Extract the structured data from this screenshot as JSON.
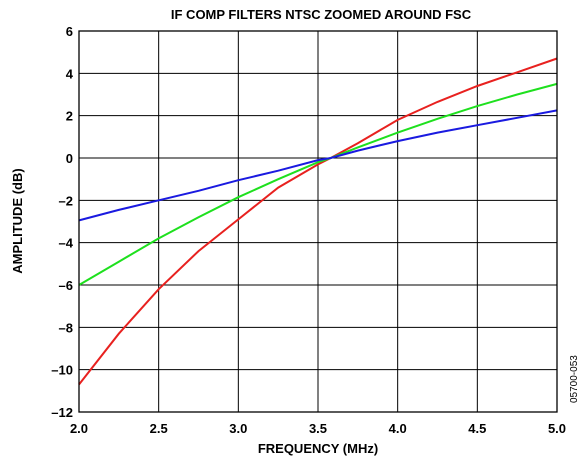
{
  "chart_data": {
    "type": "line",
    "title": "IF COMP FILTERS NTSC ZOOMED AROUND FSC",
    "xlabel": "FREQUENCY (MHz)",
    "ylabel": "AMPLITUDE (dB)",
    "xlim": [
      2.0,
      5.0
    ],
    "ylim": [
      -12,
      6
    ],
    "x_ticks": [
      2.0,
      2.5,
      3.0,
      3.5,
      4.0,
      4.5,
      5.0
    ],
    "x_tick_labels": [
      "2.0",
      "2.5",
      "3.0",
      "3.5",
      "4.0",
      "4.5",
      "5.0"
    ],
    "y_ticks": [
      6,
      4,
      2,
      0,
      -2,
      -4,
      -6,
      -8,
      -10,
      -12
    ],
    "y_tick_labels": [
      "6",
      "4",
      "2",
      "0",
      "–2",
      "–4",
      "–6",
      "–8",
      "–10",
      "–12"
    ],
    "grid": true,
    "legend": "none",
    "series": [
      {
        "color": "#e8211f",
        "x": [
          2.0,
          2.25,
          2.5,
          2.75,
          3.0,
          3.25,
          3.5,
          3.58,
          3.75,
          4.0,
          4.25,
          4.5,
          4.75,
          5.0
        ],
        "y": [
          -10.7,
          -8.3,
          -6.2,
          -4.4,
          -2.9,
          -1.4,
          -0.3,
          0.0,
          0.7,
          1.8,
          2.65,
          3.4,
          4.05,
          4.7
        ]
      },
      {
        "color": "#1ee01e",
        "x": [
          2.0,
          2.25,
          2.5,
          2.75,
          3.0,
          3.25,
          3.5,
          3.58,
          3.75,
          4.0,
          4.25,
          4.5,
          4.75,
          5.0
        ],
        "y": [
          -6.0,
          -4.9,
          -3.8,
          -2.8,
          -1.85,
          -1.0,
          -0.2,
          0.0,
          0.5,
          1.2,
          1.85,
          2.45,
          3.0,
          3.5
        ]
      },
      {
        "color": "#1a1ae0",
        "x": [
          2.0,
          2.25,
          2.5,
          2.75,
          3.0,
          3.25,
          3.5,
          3.58,
          3.75,
          4.0,
          4.25,
          4.5,
          4.75,
          5.0
        ],
        "y": [
          -2.95,
          -2.45,
          -2.0,
          -1.55,
          -1.05,
          -0.6,
          -0.1,
          0.0,
          0.35,
          0.8,
          1.2,
          1.55,
          1.9,
          2.25
        ]
      }
    ],
    "figure_id": "05700-053"
  }
}
